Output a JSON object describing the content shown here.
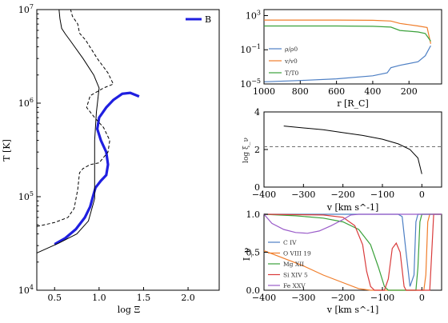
{
  "colors": {
    "blue": "#1f1fe0",
    "c1": "#4d7fc4",
    "c2": "#f07d2a",
    "c3": "#3aa13a",
    "c4": "#d93b3b",
    "c5": "#9a5cc9",
    "gray": "#707070"
  },
  "chart_data": [
    {
      "id": "left",
      "type": "line",
      "xlabel": "log Ξ",
      "ylabel": "T [K]",
      "xlim": [
        0.3,
        2.35
      ],
      "ylim": [
        10000,
        10000000
      ],
      "yscale": "log",
      "xticks": [
        "0.5",
        "1.0",
        "1.5",
        "2.0"
      ],
      "yticks": [
        "10^4",
        "10^5",
        "10^6",
        "10^7"
      ],
      "legend": [
        "B"
      ],
      "legend_position": "top-right",
      "series": [
        {
          "name": "B",
          "style": "thick",
          "points": [
            [
              0.5,
              31000
            ],
            [
              0.62,
              36000
            ],
            [
              0.74,
              45000
            ],
            [
              0.84,
              60000
            ],
            [
              0.9,
              78000
            ],
            [
              0.93,
              100000
            ],
            [
              0.96,
              125000
            ],
            [
              1.02,
              148000
            ],
            [
              1.08,
              170000
            ],
            [
              1.1,
              220000
            ],
            [
              1.08,
              300000
            ],
            [
              1.02,
              400000
            ],
            [
              0.98,
              530000
            ],
            [
              1.0,
              700000
            ],
            [
              1.08,
              900000
            ],
            [
              1.16,
              1080000
            ],
            [
              1.26,
              1260000
            ],
            [
              1.35,
              1290000
            ],
            [
              1.45,
              1180000
            ]
          ]
        },
        {
          "style": "solid",
          "points": [
            [
              0.3,
              25000
            ],
            [
              0.55,
              32000
            ],
            [
              0.75,
              40000
            ],
            [
              0.88,
              55000
            ],
            [
              0.95,
              95000
            ],
            [
              0.95,
              200000
            ],
            [
              0.95,
              400000
            ],
            [
              0.97,
              800000
            ],
            [
              1.0,
              1450000
            ],
            [
              0.94,
              2000000
            ],
            [
              0.82,
              3000000
            ],
            [
              0.68,
              4600000
            ],
            [
              0.62,
              5500000
            ],
            [
              0.58,
              6300000
            ],
            [
              0.56,
              8000000
            ],
            [
              0.55,
              10000000
            ]
          ]
        },
        {
          "style": "dashed",
          "points": [
            [
              0.3,
              48000
            ],
            [
              0.5,
              53000
            ],
            [
              0.65,
              60000
            ],
            [
              0.72,
              75000
            ],
            [
              0.76,
              120000
            ],
            [
              0.78,
              180000
            ],
            [
              0.82,
              200000
            ],
            [
              0.9,
              220000
            ],
            [
              1.0,
              230000
            ],
            [
              1.1,
              300000
            ],
            [
              1.12,
              400000
            ],
            [
              1.05,
              550000
            ],
            [
              0.95,
              700000
            ],
            [
              0.86,
              900000
            ],
            [
              0.9,
              1200000
            ],
            [
              1.05,
              1450000
            ],
            [
              1.16,
              1600000
            ],
            [
              1.1,
              2100000
            ],
            [
              0.98,
              3000000
            ],
            [
              0.85,
              4700000
            ],
            [
              0.78,
              5600000
            ],
            [
              0.76,
              7000000
            ],
            [
              0.7,
              8500000
            ],
            [
              0.68,
              10000000
            ]
          ]
        }
      ]
    },
    {
      "id": "top-right",
      "type": "line",
      "xlabel": "r [R_C]",
      "xlim": [
        1000,
        20
      ],
      "ylim": [
        1e-05,
        5000
      ],
      "yscale": "log",
      "xticks": [
        "1000",
        "800",
        "600",
        "400",
        "200"
      ],
      "yticks": [
        "10^3",
        "10^-1",
        "10^-5"
      ],
      "legend_position": "center-left",
      "series": [
        {
          "name": "ρ/ρ0",
          "points": [
            [
              1000,
              1.8e-05
            ],
            [
              800,
              2.5e-05
            ],
            [
              600,
              4e-05
            ],
            [
              400,
              9e-05
            ],
            [
              320,
              0.0002
            ],
            [
              300,
              0.0008
            ],
            [
              250,
              0.0015
            ],
            [
              150,
              0.004
            ],
            [
              110,
              0.02
            ],
            [
              80,
              0.3
            ]
          ]
        },
        {
          "name": "v/v0",
          "points": [
            [
              1000,
              300
            ],
            [
              800,
              300
            ],
            [
              600,
              300
            ],
            [
              400,
              280
            ],
            [
              300,
              230
            ],
            [
              250,
              120
            ],
            [
              150,
              60
            ],
            [
              100,
              40
            ],
            [
              80,
              0.5
            ]
          ]
        },
        {
          "name": "T/T0",
          "points": [
            [
              1000,
              60
            ],
            [
              800,
              60
            ],
            [
              600,
              60
            ],
            [
              400,
              55
            ],
            [
              300,
              45
            ],
            [
              250,
              18
            ],
            [
              150,
              12
            ],
            [
              110,
              8
            ],
            [
              80,
              1
            ]
          ]
        }
      ]
    },
    {
      "id": "middle-right",
      "type": "line",
      "xlabel": "v [km s^-1]",
      "ylabel": "log ξ_ν",
      "xlim": [
        -400,
        50
      ],
      "ylim": [
        0,
        4
      ],
      "xticks": [
        "−400",
        "−300",
        "−200",
        "−100",
        "0"
      ],
      "yticks": [
        "0",
        "2",
        "4"
      ],
      "reference_line": 2.15,
      "series": [
        {
          "points": [
            [
              -350,
              3.25
            ],
            [
              -300,
              3.15
            ],
            [
              -250,
              3.05
            ],
            [
              -200,
              2.9
            ],
            [
              -150,
              2.75
            ],
            [
              -100,
              2.55
            ],
            [
              -60,
              2.3
            ],
            [
              -30,
              2.0
            ],
            [
              -10,
              1.55
            ],
            [
              0,
              0.7
            ]
          ]
        }
      ]
    },
    {
      "id": "bottom-right",
      "type": "line",
      "xlabel": "v [km s^-1]",
      "ylabel": "I_ν",
      "xlim": [
        -400,
        50
      ],
      "ylim": [
        0,
        1
      ],
      "xticks": [
        "−400",
        "−300",
        "−200",
        "−100",
        "0"
      ],
      "yticks": [
        "0.0",
        "0.5",
        "1.0"
      ],
      "legend_position": "left",
      "series": [
        {
          "name": "C IV",
          "points": [
            [
              -400,
              1
            ],
            [
              -60,
              1
            ],
            [
              -50,
              0.97
            ],
            [
              -40,
              0.5
            ],
            [
              -30,
              0.05
            ],
            [
              -20,
              0.2
            ],
            [
              -15,
              0.9
            ],
            [
              -10,
              1
            ],
            [
              50,
              1
            ]
          ]
        },
        {
          "name": "O VIII 19",
          "points": [
            [
              -400,
              0.52
            ],
            [
              -350,
              0.42
            ],
            [
              -300,
              0.32
            ],
            [
              -250,
              0.2
            ],
            [
              -200,
              0.1
            ],
            [
              -160,
              0.02
            ],
            [
              -130,
              0
            ],
            [
              5,
              0
            ],
            [
              10,
              0.2
            ],
            [
              15,
              0.9
            ],
            [
              20,
              1
            ],
            [
              50,
              1
            ]
          ]
        },
        {
          "name": "Mg XII",
          "points": [
            [
              -400,
              1
            ],
            [
              -320,
              0.98
            ],
            [
              -250,
              0.95
            ],
            [
              -200,
              0.9
            ],
            [
              -160,
              0.8
            ],
            [
              -130,
              0.6
            ],
            [
              -110,
              0.3
            ],
            [
              -95,
              0.05
            ],
            [
              -85,
              0
            ],
            [
              -15,
              0
            ],
            [
              -10,
              0.3
            ],
            [
              -5,
              0.9
            ],
            [
              0,
              1
            ],
            [
              50,
              1
            ]
          ]
        },
        {
          "name": "Si XIV 5",
          "points": [
            [
              -400,
              1
            ],
            [
              -250,
              0.99
            ],
            [
              -200,
              0.96
            ],
            [
              -170,
              0.85
            ],
            [
              -150,
              0.6
            ],
            [
              -140,
              0.25
            ],
            [
              -130,
              0.05
            ],
            [
              -120,
              0
            ],
            [
              -95,
              0
            ],
            [
              -85,
              0.15
            ],
            [
              -75,
              0.55
            ],
            [
              -65,
              0.62
            ],
            [
              -55,
              0.5
            ],
            [
              -45,
              0.05
            ],
            [
              -40,
              0
            ],
            [
              20,
              0
            ],
            [
              25,
              0.5
            ],
            [
              30,
              1
            ],
            [
              50,
              1
            ]
          ]
        },
        {
          "name": "Fe XXV",
          "points": [
            [
              -400,
              1
            ],
            [
              -380,
              0.88
            ],
            [
              -350,
              0.8
            ],
            [
              -320,
              0.76
            ],
            [
              -290,
              0.75
            ],
            [
              -260,
              0.78
            ],
            [
              -230,
              0.85
            ],
            [
              -200,
              0.93
            ],
            [
              -180,
              0.99
            ],
            [
              -160,
              1
            ],
            [
              50,
              1
            ]
          ]
        }
      ]
    }
  ]
}
